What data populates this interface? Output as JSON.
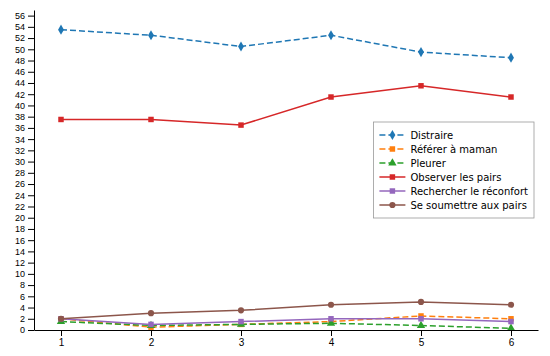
{
  "chart_data": {
    "type": "line",
    "x": [
      1,
      2,
      3,
      4,
      5,
      6
    ],
    "series": [
      {
        "name": "Distraire",
        "values": [
          53.5,
          52.5,
          50.5,
          52.5,
          49.5,
          48.5
        ],
        "marker": "diamond",
        "line_style": "dashed"
      },
      {
        "name": "Référer à maman",
        "values": [
          2.0,
          0.5,
          1.0,
          1.5,
          2.5,
          2.0
        ],
        "marker": "square",
        "line_style": "dashed"
      },
      {
        "name": "Pleurer",
        "values": [
          1.5,
          0.8,
          1.0,
          1.2,
          0.8,
          0.3
        ],
        "marker": "triangle",
        "line_style": "dashed"
      },
      {
        "name": "Observer les pairs",
        "values": [
          37.5,
          37.5,
          36.5,
          41.5,
          43.5,
          41.5
        ],
        "marker": "square",
        "line_style": "solid"
      },
      {
        "name": "Rechercher le réconfort",
        "values": [
          2.0,
          1.0,
          1.5,
          2.0,
          2.0,
          1.5
        ],
        "marker": "square",
        "line_style": "solid"
      },
      {
        "name": "Se soumettre aux pairs",
        "values": [
          2.0,
          3.0,
          3.5,
          4.5,
          5.0,
          4.5
        ],
        "marker": "circle",
        "line_style": "solid"
      }
    ],
    "xlim": [
      0.7,
      6.3
    ],
    "xticks": [
      1,
      2,
      3,
      4,
      5,
      6
    ],
    "ylim": [
      0,
      57
    ],
    "yticks": [
      0,
      2,
      4,
      6,
      8,
      10,
      12,
      14,
      16,
      18,
      20,
      22,
      24,
      26,
      28,
      30,
      32,
      34,
      36,
      38,
      40,
      42,
      44,
      46,
      48,
      50,
      52,
      54,
      56
    ],
    "grid": false,
    "legend": "right"
  }
}
